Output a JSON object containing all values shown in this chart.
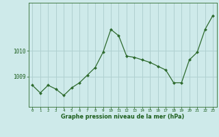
{
  "x": [
    0,
    1,
    2,
    3,
    4,
    5,
    6,
    7,
    8,
    9,
    10,
    11,
    12,
    13,
    14,
    15,
    16,
    17,
    18,
    19,
    20,
    21,
    22,
    23
  ],
  "y": [
    1008.65,
    1008.35,
    1008.65,
    1008.5,
    1008.25,
    1008.55,
    1008.75,
    1009.05,
    1009.35,
    1009.95,
    1010.85,
    1010.6,
    1009.8,
    1009.75,
    1009.65,
    1009.55,
    1009.4,
    1009.25,
    1008.75,
    1008.75,
    1009.65,
    1009.95,
    1010.85,
    1011.4
  ],
  "line_color": "#2d6a2d",
  "marker_color": "#2d6a2d",
  "bg_color": "#ceeaea",
  "grid_color": "#b0d0d0",
  "xlabel": "Graphe pression niveau de la mer (hPa)",
  "xlabel_color": "#1a5c1a",
  "ylabel_ticks": [
    1009,
    1010
  ],
  "ylim": [
    1007.8,
    1011.9
  ],
  "xlim": [
    -0.5,
    23.5
  ],
  "figsize": [
    3.2,
    2.0
  ],
  "dpi": 100
}
